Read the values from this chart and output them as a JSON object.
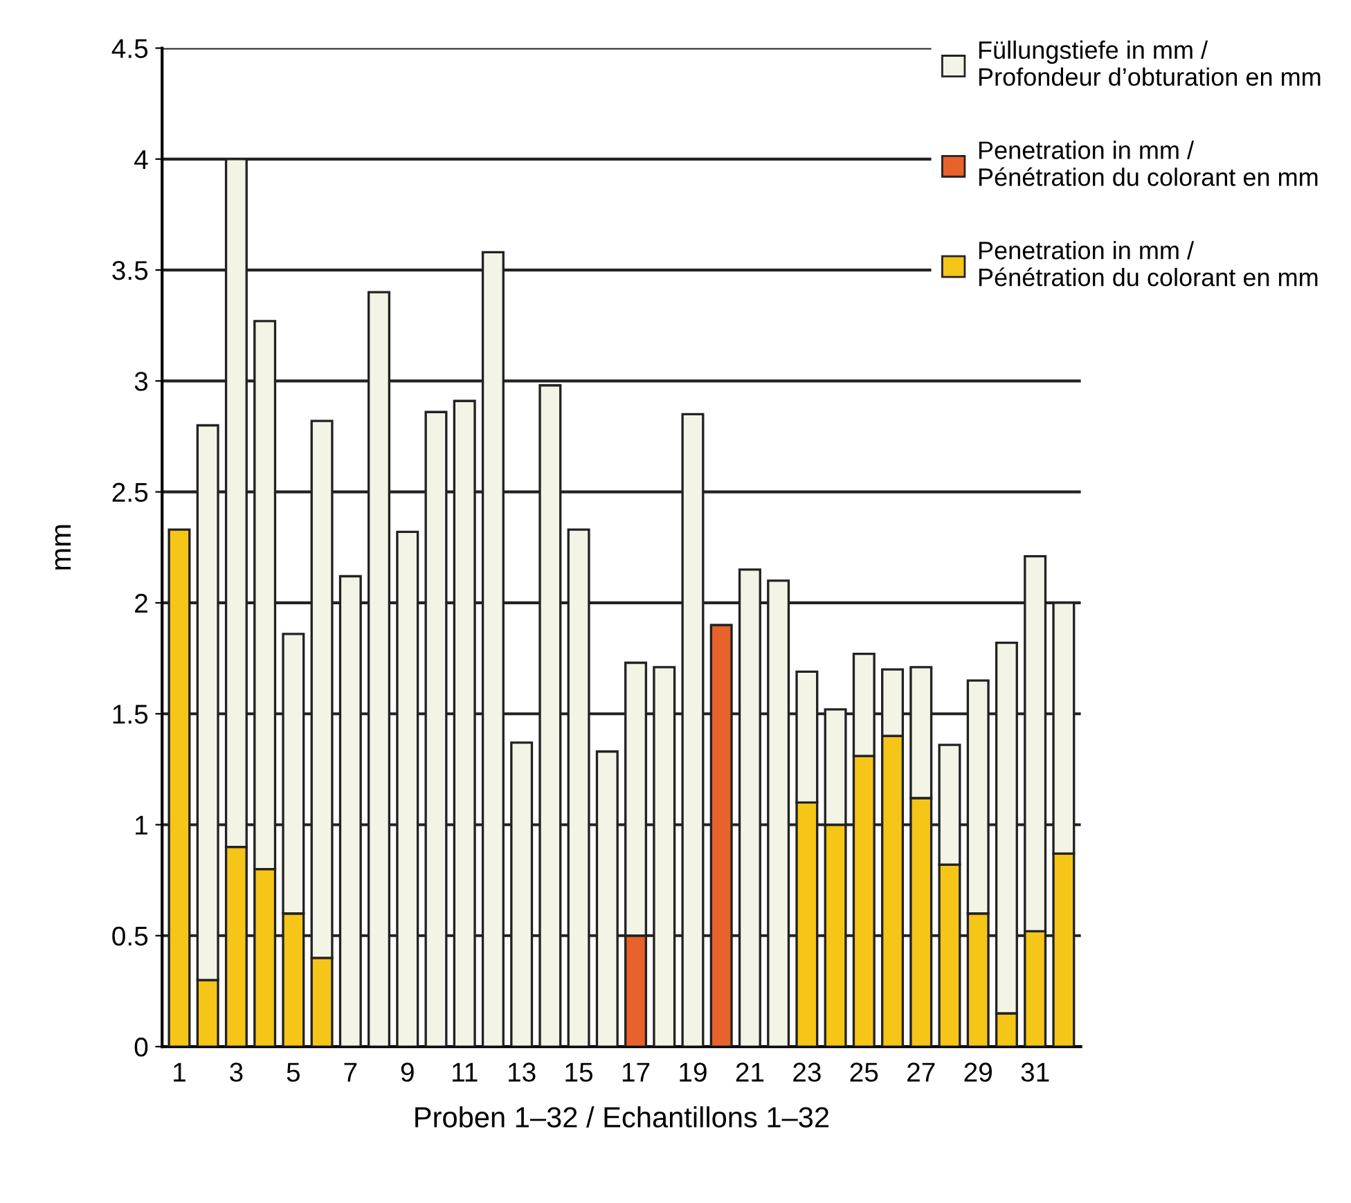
{
  "chart_data": {
    "type": "bar",
    "stacked": true,
    "xlabel": "Proben 1–32 / Echantillons 1–32",
    "ylabel": "mm",
    "categories": [
      "1",
      null,
      "3",
      null,
      "5",
      null,
      "7",
      null,
      "9",
      null,
      "11",
      null,
      "13",
      null,
      "15",
      null,
      "17",
      null,
      "19",
      null,
      "21",
      null,
      "23",
      null,
      "25",
      null,
      "27",
      null,
      "29",
      null,
      "31",
      null
    ],
    "series": [
      {
        "name": "Penetration in mm / Pénétration du colorant en mm",
        "color": "#f5c518",
        "values": [
          2.33,
          0.3,
          0.9,
          0.8,
          0.6,
          0.4,
          null,
          null,
          null,
          null,
          null,
          null,
          null,
          null,
          null,
          null,
          null,
          null,
          null,
          null,
          null,
          null,
          1.1,
          1.0,
          1.31,
          1.4,
          1.12,
          0.82,
          0.6,
          0.15,
          0.52,
          0.87
        ]
      },
      {
        "name": "Penetration in mm / Pénétration du colorant en mm",
        "color": "#e8622c",
        "values": [
          null,
          null,
          null,
          null,
          null,
          null,
          null,
          null,
          null,
          null,
          null,
          null,
          null,
          null,
          null,
          null,
          0.5,
          null,
          null,
          1.9,
          null,
          null,
          null,
          null,
          null,
          null,
          null,
          null,
          null,
          null,
          null,
          null
        ]
      },
      {
        "name": "Füllungstiefe in mm / Profondeur d’obturation en mm",
        "color": "#f3f3e6",
        "values": [
          null,
          2.5,
          3.1,
          2.47,
          1.26,
          2.42,
          2.12,
          3.4,
          2.32,
          2.86,
          2.91,
          3.58,
          1.37,
          2.98,
          2.33,
          1.33,
          1.23,
          1.71,
          2.85,
          null,
          2.15,
          2.1,
          0.59,
          0.52,
          0.46,
          0.3,
          0.59,
          0.54,
          1.05,
          1.67,
          1.69,
          1.13
        ]
      }
    ],
    "ylim": [
      0,
      4.5
    ],
    "yticks": [
      0,
      0.5,
      1,
      1.5,
      2,
      2.5,
      3,
      3.5,
      4,
      4.5
    ],
    "grid": "y",
    "legend": "top right"
  }
}
